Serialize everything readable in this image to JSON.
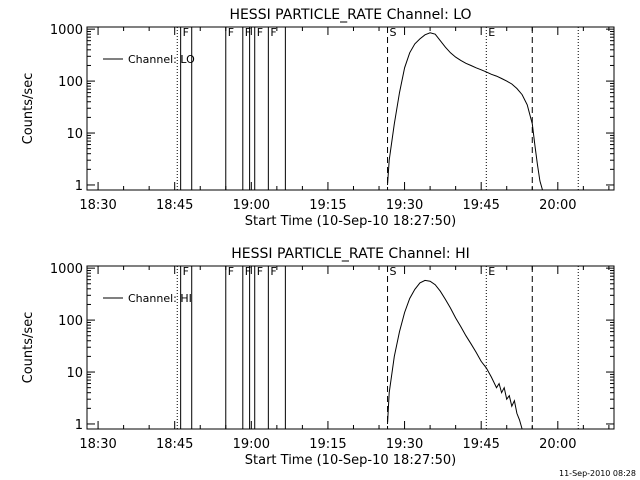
{
  "footer": {
    "timestamp": "11-Sep-2010 08:28"
  },
  "chart_data": [
    {
      "type": "line",
      "title": "HESSI PARTICLE_RATE Channel: LO",
      "xlabel": "Start Time (10-Sep-10 18:27:50)",
      "ylabel": "Counts/sec",
      "yscale": "log",
      "ylim": [
        0.8,
        1100
      ],
      "xlim": [
        "18:27:50",
        "20:11:00"
      ],
      "x_ticks": [
        "18:30",
        "18:45",
        "19:00",
        "19:15",
        "19:30",
        "19:45",
        "20:00"
      ],
      "y_ticks": [
        "1",
        "10",
        "100",
        "1000"
      ],
      "legend": {
        "position": "top-left",
        "entries": [
          "Channel: LO"
        ]
      },
      "series": [
        {
          "name": "Channel: LO",
          "x": [
            "19:26:40",
            "19:27:00",
            "19:28:00",
            "19:29:00",
            "19:30:00",
            "19:31:00",
            "19:32:00",
            "19:33:00",
            "19:34:00",
            "19:35:00",
            "19:36:00",
            "19:37:00",
            "19:38:00",
            "19:39:00",
            "19:40:00",
            "19:41:00",
            "19:42:00",
            "19:43:00",
            "19:44:00",
            "19:45:00",
            "19:46:00",
            "19:47:00",
            "19:48:00",
            "19:49:00",
            "19:50:00",
            "19:51:00",
            "19:52:00",
            "19:53:00",
            "19:54:00",
            "19:55:00",
            "19:55:30",
            "19:56:00",
            "19:56:30",
            "19:57:00"
          ],
          "y": [
            1.0,
            3,
            15,
            60,
            180,
            350,
            520,
            650,
            780,
            850,
            800,
            600,
            450,
            350,
            290,
            250,
            220,
            200,
            180,
            165,
            150,
            135,
            125,
            112,
            100,
            88,
            72,
            55,
            35,
            15,
            6,
            2.5,
            1.2,
            0.8
          ]
        }
      ],
      "markers": [
        {
          "label": "F",
          "x": "18:46:10",
          "style": "solid"
        },
        {
          "label": "F",
          "x": "18:55:00",
          "style": "solid"
        },
        {
          "label": "F",
          "x": "18:58:20",
          "style": "solid"
        },
        {
          "label": "F",
          "x": "19:00:40",
          "style": "solid"
        },
        {
          "label": "F",
          "x": "19:03:20",
          "style": "solid"
        },
        {
          "label": "S",
          "x": "19:26:40",
          "style": "dashed"
        },
        {
          "label": "E",
          "x": "19:46:00",
          "style": "dotted"
        },
        {
          "label": "",
          "x": "18:45:30",
          "style": "dotted"
        },
        {
          "label": "",
          "x": "18:48:20",
          "style": "solid"
        },
        {
          "label": "",
          "x": "18:59:40",
          "style": "solid"
        },
        {
          "label": "",
          "x": "19:06:40",
          "style": "solid"
        },
        {
          "label": "",
          "x": "19:55:00",
          "style": "dashed"
        },
        {
          "label": "",
          "x": "20:04:00",
          "style": "dotted"
        }
      ]
    },
    {
      "type": "line",
      "title": "HESSI PARTICLE_RATE Channel: HI",
      "xlabel": "Start Time (10-Sep-10 18:27:50)",
      "ylabel": "Counts/sec",
      "yscale": "log",
      "ylim": [
        0.8,
        1100
      ],
      "xlim": [
        "18:27:50",
        "20:11:00"
      ],
      "x_ticks": [
        "18:30",
        "18:45",
        "19:00",
        "19:15",
        "19:30",
        "19:45",
        "20:00"
      ],
      "y_ticks": [
        "1",
        "10",
        "100",
        "1000"
      ],
      "legend": {
        "position": "top-left",
        "entries": [
          "Channel: HI"
        ]
      },
      "series": [
        {
          "name": "Channel: HI",
          "x": [
            "19:26:40",
            "19:27:00",
            "19:28:00",
            "19:29:00",
            "19:30:00",
            "19:31:00",
            "19:32:00",
            "19:33:00",
            "19:34:00",
            "19:35:00",
            "19:36:00",
            "19:37:00",
            "19:38:00",
            "19:39:00",
            "19:40:00",
            "19:41:00",
            "19:42:00",
            "19:43:00",
            "19:44:00",
            "19:45:00",
            "19:46:00",
            "19:47:00",
            "19:48:00",
            "19:48:30",
            "19:49:00",
            "19:49:30",
            "19:50:00",
            "19:50:30",
            "19:51:00",
            "19:51:30",
            "19:52:00",
            "19:52:30",
            "19:53:00"
          ],
          "y": [
            1.0,
            4,
            20,
            60,
            140,
            260,
            390,
            520,
            580,
            560,
            480,
            360,
            250,
            170,
            110,
            75,
            50,
            35,
            24,
            16,
            12,
            8,
            5,
            6,
            4,
            5,
            3,
            3.5,
            2.2,
            2.8,
            1.6,
            1.2,
            0.8
          ]
        }
      ],
      "markers": [
        {
          "label": "F",
          "x": "18:46:10",
          "style": "solid"
        },
        {
          "label": "F",
          "x": "18:55:00",
          "style": "solid"
        },
        {
          "label": "F",
          "x": "18:58:20",
          "style": "solid"
        },
        {
          "label": "F",
          "x": "19:00:40",
          "style": "solid"
        },
        {
          "label": "F",
          "x": "19:03:20",
          "style": "solid"
        },
        {
          "label": "S",
          "x": "19:26:40",
          "style": "dashed"
        },
        {
          "label": "E",
          "x": "19:46:00",
          "style": "dotted"
        },
        {
          "label": "",
          "x": "18:45:30",
          "style": "dotted"
        },
        {
          "label": "",
          "x": "18:48:20",
          "style": "solid"
        },
        {
          "label": "",
          "x": "18:59:40",
          "style": "solid"
        },
        {
          "label": "",
          "x": "19:06:40",
          "style": "solid"
        },
        {
          "label": "",
          "x": "19:55:00",
          "style": "dashed"
        },
        {
          "label": "",
          "x": "20:04:00",
          "style": "dotted"
        }
      ]
    }
  ]
}
